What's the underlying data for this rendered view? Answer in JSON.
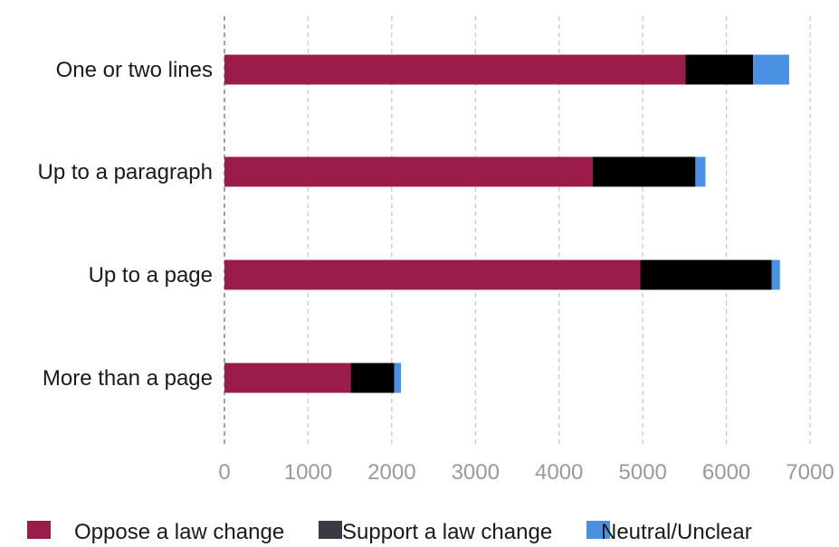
{
  "chart_data": {
    "type": "bar",
    "orientation": "horizontal",
    "stacked": true,
    "categories": [
      "One or two lines",
      "Up to a paragraph",
      "Up to a page",
      "More than a page"
    ],
    "series": [
      {
        "name": "Oppose a law change",
        "color": "#9b1b4a",
        "values": [
          5510,
          4400,
          4970,
          1510
        ]
      },
      {
        "name": "Support a law change",
        "color": "#000000",
        "legend_color": "#3a3a44",
        "values": [
          810,
          1230,
          1570,
          520
        ]
      },
      {
        "name": "Neutral/Unclear",
        "color": "#4a90e2",
        "values": [
          430,
          120,
          100,
          80
        ]
      }
    ],
    "x_ticks": [
      "0",
      "1000",
      "2000",
      "3000",
      "4000",
      "5000",
      "6000",
      "7000"
    ],
    "xlim": [
      0,
      7000
    ],
    "grid": true,
    "legend_position": "bottom"
  }
}
